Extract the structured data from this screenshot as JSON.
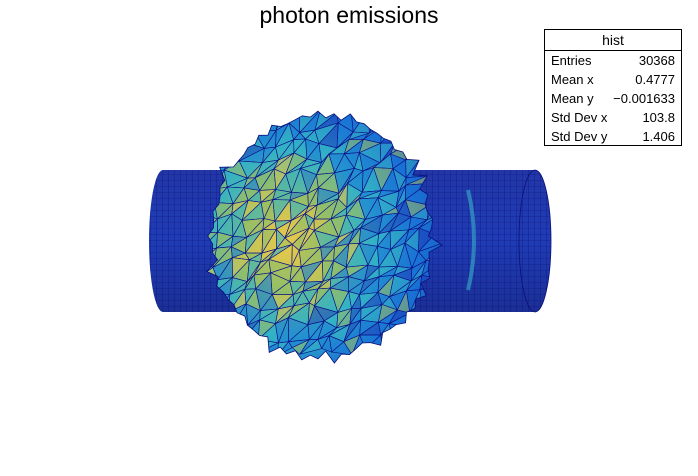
{
  "chart_data": {
    "type": "surface",
    "title": "photon emissions",
    "colors": {
      "dark_blue": "#1f2f9d",
      "mid_blue": "#1a5fd6",
      "cyan": "#1aa2d9",
      "teal": "#3fb9a6",
      "green_yellow": "#a8c25e",
      "yellow": "#f0c83c",
      "mesh_line": "#00008b"
    }
  },
  "stats": {
    "name": "hist",
    "rows": [
      {
        "key": "Entries",
        "value": "30368"
      },
      {
        "key": "Mean x",
        "value": "0.4777"
      },
      {
        "key": "Mean y",
        "value": "−0.001633"
      },
      {
        "key": "Std Dev x",
        "value": "103.8"
      },
      {
        "key": "Std Dev y",
        "value": "1.406"
      }
    ]
  }
}
